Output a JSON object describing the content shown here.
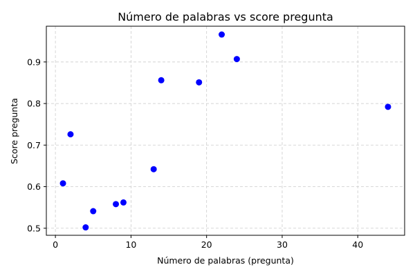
{
  "chart_data": {
    "type": "scatter",
    "title": "Número de palabras vs score pregunta",
    "xlabel": "Número de palabras (pregunta)",
    "ylabel": "Score pregunta",
    "xlim": [
      -1.2,
      46.2
    ],
    "ylim": [
      0.483,
      0.986
    ],
    "xticks": [
      0,
      10,
      20,
      30,
      40
    ],
    "yticks": [
      0.5,
      0.6,
      0.7,
      0.8,
      0.9
    ],
    "xtick_labels": [
      "0",
      "10",
      "20",
      "30",
      "40"
    ],
    "ytick_labels": [
      "0.5",
      "0.6",
      "0.7",
      "0.8",
      "0.9"
    ],
    "grid": true,
    "marker_color": "#0000ff",
    "points": [
      {
        "x": 1,
        "y": 0.608
      },
      {
        "x": 2,
        "y": 0.726
      },
      {
        "x": 4,
        "y": 0.502
      },
      {
        "x": 5,
        "y": 0.541
      },
      {
        "x": 8,
        "y": 0.558
      },
      {
        "x": 9,
        "y": 0.562
      },
      {
        "x": 13,
        "y": 0.642
      },
      {
        "x": 14,
        "y": 0.856
      },
      {
        "x": 19,
        "y": 0.851
      },
      {
        "x": 22,
        "y": 0.966
      },
      {
        "x": 24,
        "y": 0.907
      },
      {
        "x": 44,
        "y": 0.792
      }
    ]
  }
}
